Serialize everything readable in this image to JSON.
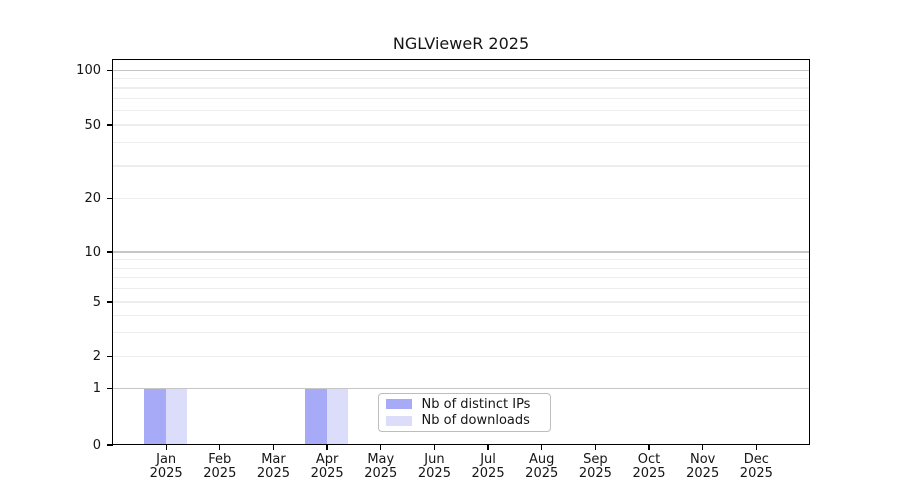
{
  "chart_data": {
    "type": "bar",
    "title": "NGLVieweR 2025",
    "categories": [
      "Jan 2025",
      "Feb 2025",
      "Mar 2025",
      "Apr 2025",
      "May 2025",
      "Jun 2025",
      "Jul 2025",
      "Aug 2025",
      "Sep 2025",
      "Oct 2025",
      "Nov 2025",
      "Dec 2025"
    ],
    "series": [
      {
        "name": "Nb of distinct IPs",
        "color": "#a7aaf7",
        "values": [
          1,
          0,
          0,
          1,
          0,
          0,
          0,
          0,
          0,
          0,
          0,
          0
        ]
      },
      {
        "name": "Nb of downloads",
        "color": "#dbddfa",
        "values": [
          1,
          0,
          0,
          1,
          0,
          0,
          0,
          0,
          0,
          0,
          0,
          0
        ]
      }
    ],
    "y_axis": {
      "scale": "log-like (0,1 linear segment, log above 1)",
      "tick_labels": [
        "0",
        "1",
        "2",
        "5",
        "10",
        "20",
        "50",
        "100"
      ],
      "minor_gridline_values": [
        3,
        4,
        6,
        7,
        8,
        9,
        30,
        40,
        60,
        70,
        80,
        90
      ],
      "min": 0,
      "max": 130
    },
    "x_axis": {
      "label_line_count": 2
    },
    "legend": {
      "position": "lower center",
      "border_color": "#bdbdbd",
      "entries": [
        "Nb of distinct IPs",
        "Nb of downloads"
      ]
    },
    "grid": {
      "pow10_color": "#c6c6c6",
      "minor_color": "#ededed",
      "axis_color": "#000000"
    },
    "background": "#ffffff"
  }
}
